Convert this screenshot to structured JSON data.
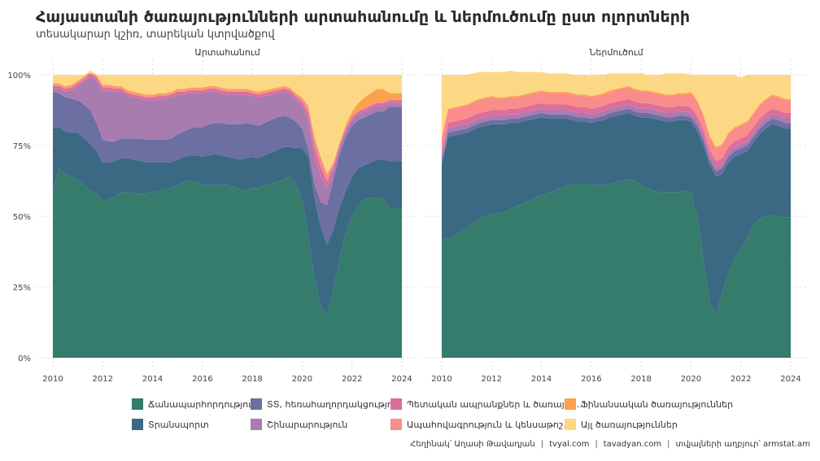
{
  "title": "Հայաստանի ծառայությունների արտահանումը և ներմուծումը ըստ ոլորտների",
  "subtitle": "տեսակարար կշիռ, տարեկան կտրվածքով",
  "caption": {
    "author": "Հեղինակ՝ Աղասի Թավադյան",
    "site1": "tvyal.com",
    "site2": "tavadyan.com",
    "source": "տվյալների աղբյուր՝ armstat.am"
  },
  "chart_data": {
    "type": "area",
    "stacked": true,
    "grid": true,
    "legend_position": "bottom",
    "x_ticks": [
      "2010",
      "2012",
      "2014",
      "2016",
      "2018",
      "2020",
      "2022",
      "2024"
    ],
    "y_ticks": [
      "0%",
      "25%",
      "50%",
      "75%",
      "100%"
    ],
    "ylim": [
      0,
      100
    ],
    "xlim": [
      2010,
      2024
    ],
    "x": [
      2010.0,
      2010.25,
      2010.5,
      2010.75,
      2011.0,
      2011.25,
      2011.5,
      2011.75,
      2012.0,
      2012.25,
      2012.5,
      2012.75,
      2013.0,
      2013.25,
      2013.5,
      2013.75,
      2014.0,
      2014.25,
      2014.5,
      2014.75,
      2015.0,
      2015.25,
      2015.5,
      2015.75,
      2016.0,
      2016.25,
      2016.5,
      2016.75,
      2017.0,
      2017.25,
      2017.5,
      2017.75,
      2018.0,
      2018.25,
      2018.5,
      2018.75,
      2019.0,
      2019.25,
      2019.5,
      2019.75,
      2020.0,
      2020.25,
      2020.5,
      2020.75,
      2021.0,
      2021.25,
      2021.5,
      2021.75,
      2022.0,
      2022.25,
      2022.5,
      2022.75,
      2023.0,
      2023.25,
      2023.5,
      2023.75,
      2024.0
    ],
    "categories": [
      {
        "key": "transport",
        "name": "Տրանսպորտ",
        "color": "#3b6882"
      },
      {
        "key": "construction",
        "name": "Շինարարություն",
        "color": "#a97cb0"
      },
      {
        "key": "insurance",
        "name": "Ապահովագրություն և կենսաթոշ...",
        "color": "#fa8c8c"
      },
      {
        "key": "other",
        "name": "Այլ ծառայություններ",
        "color": "#fdd884"
      },
      {
        "key": "travel",
        "name": "Ճանապարհորդություն",
        "color": "#357c6c"
      },
      {
        "key": "ict",
        "name": "ՏՏ, հեռահաղորդակցություն",
        "color": "#6b6fa2"
      },
      {
        "key": "government",
        "name": "Պետական ապրանքներ և ծառայու...",
        "color": "#dc6e9c"
      },
      {
        "key": "financial",
        "name": "Ֆինանսական ծառայություններ",
        "color": "#fba24a"
      }
    ],
    "stack_order": [
      "travel",
      "transport",
      "ict",
      "construction",
      "government",
      "insurance",
      "financial",
      "other"
    ],
    "panels": [
      {
        "title": "Արտահանում",
        "series": {
          "travel": [
            59.0,
            67.0,
            65.0,
            64.0,
            63.0,
            61.0,
            59.0,
            58.0,
            55.5,
            56.0,
            57.0,
            58.5,
            58.5,
            58.0,
            58.0,
            58.0,
            58.5,
            59.0,
            59.5,
            60.0,
            61.0,
            62.0,
            62.5,
            62.0,
            61.0,
            61.0,
            61.0,
            61.0,
            61.0,
            60.5,
            59.5,
            59.0,
            60.0,
            60.0,
            61.0,
            61.5,
            62.0,
            63.0,
            64.0,
            61.0,
            56.0,
            43.0,
            28.0,
            18.0,
            15.0,
            24.0,
            35.0,
            44.0,
            50.0,
            54.0,
            56.0,
            56.5,
            56.5,
            56.0,
            53.0,
            53.0,
            53.0
          ],
          "transport": [
            22.0,
            14.5,
            15.0,
            15.5,
            16.5,
            16.5,
            16.5,
            15.0,
            13.5,
            13.0,
            12.5,
            12.0,
            12.0,
            12.0,
            11.5,
            11.0,
            10.5,
            10.0,
            9.5,
            9.0,
            9.0,
            9.0,
            9.0,
            9.5,
            10.0,
            10.5,
            11.0,
            10.5,
            10.0,
            10.0,
            10.5,
            11.5,
            11.0,
            10.5,
            10.5,
            11.0,
            11.5,
            11.5,
            10.5,
            13.0,
            18.0,
            28.0,
            28.0,
            28.0,
            25.0,
            21.0,
            18.0,
            15.0,
            14.0,
            13.0,
            12.0,
            12.5,
            13.5,
            14.0,
            16.5,
            16.5,
            16.5
          ],
          "ict": [
            13.0,
            12.0,
            12.0,
            12.0,
            11.5,
            12.0,
            12.0,
            10.0,
            8.0,
            7.5,
            7.0,
            7.0,
            7.0,
            7.5,
            8.0,
            8.0,
            8.0,
            8.0,
            8.0,
            8.5,
            9.0,
            9.0,
            9.5,
            10.0,
            10.5,
            11.0,
            11.0,
            11.5,
            11.5,
            12.0,
            12.5,
            12.5,
            11.5,
            11.5,
            11.5,
            11.5,
            11.5,
            11.0,
            10.5,
            9.5,
            7.0,
            3.0,
            5.0,
            9.0,
            14.0,
            18.0,
            19.0,
            19.0,
            18.0,
            17.0,
            17.0,
            17.0,
            17.0,
            17.0,
            19.0,
            19.0,
            19.0
          ],
          "construction": [
            1.0,
            1.5,
            2.0,
            3.0,
            5.0,
            8.0,
            12.0,
            15.0,
            17.5,
            18.0,
            17.5,
            16.5,
            15.0,
            14.5,
            14.0,
            14.0,
            14.0,
            14.5,
            14.5,
            14.5,
            14.0,
            13.0,
            12.5,
            12.0,
            12.0,
            11.5,
            11.0,
            10.5,
            10.5,
            10.5,
            10.5,
            10.0,
            10.0,
            10.0,
            9.5,
            9.0,
            8.5,
            8.5,
            8.5,
            8.0,
            8.0,
            10.0,
            10.0,
            9.0,
            6.0,
            3.0,
            2.0,
            2.0,
            2.0,
            2.0,
            2.0,
            2.0,
            2.0,
            2.0,
            1.5,
            1.5,
            1.5
          ],
          "government": [
            1.0,
            1.0,
            1.0,
            1.0,
            1.0,
            1.0,
            1.0,
            1.0,
            1.0,
            1.0,
            1.0,
            1.0,
            1.0,
            1.0,
            1.0,
            1.0,
            1.0,
            1.0,
            1.0,
            1.0,
            1.0,
            1.0,
            1.0,
            1.0,
            1.0,
            1.0,
            1.0,
            1.0,
            1.0,
            1.0,
            1.0,
            1.0,
            1.0,
            1.0,
            1.0,
            1.0,
            1.0,
            1.0,
            1.0,
            1.0,
            1.5,
            2.5,
            3.5,
            3.5,
            2.5,
            1.5,
            1.0,
            1.0,
            1.0,
            1.0,
            1.0,
            1.0,
            1.0,
            1.0,
            1.0,
            1.0,
            1.0
          ],
          "insurance": [
            0.5,
            0.5,
            0.5,
            0.5,
            0.5,
            0.5,
            0.5,
            0.5,
            0.5,
            0.5,
            0.5,
            0.5,
            0.5,
            0.5,
            0.5,
            0.5,
            0.5,
            0.5,
            0.5,
            0.5,
            0.5,
            0.5,
            0.5,
            0.5,
            0.5,
            0.5,
            0.5,
            0.5,
            0.5,
            0.5,
            0.5,
            0.5,
            0.5,
            0.5,
            0.5,
            0.5,
            0.5,
            0.5,
            0.5,
            0.5,
            1.0,
            2.0,
            3.0,
            3.0,
            2.0,
            1.0,
            0.5,
            0.5,
            0.5,
            0.5,
            0.5,
            0.5,
            0.5,
            0.5,
            0.5,
            0.5,
            0.5
          ],
          "financial": [
            0.5,
            0.5,
            0.5,
            0.5,
            0.5,
            0.5,
            0.5,
            0.5,
            0.5,
            0.5,
            0.5,
            0.5,
            0.5,
            0.5,
            0.5,
            0.5,
            0.5,
            0.5,
            0.5,
            0.5,
            0.5,
            0.5,
            0.5,
            0.5,
            0.5,
            0.5,
            0.5,
            0.5,
            0.5,
            0.5,
            0.5,
            0.5,
            0.5,
            0.5,
            0.5,
            0.5,
            0.5,
            0.5,
            0.5,
            0.5,
            0.5,
            0.5,
            0.5,
            0.5,
            0.5,
            0.5,
            0.5,
            1.0,
            1.5,
            2.5,
            3.5,
            4.0,
            4.5,
            4.5,
            2.0,
            2.0,
            2.0
          ],
          "other": [
            3.0,
            3.0,
            4.0,
            3.5,
            2.0,
            0.5,
            -1.0,
            0.0,
            3.5,
            3.5,
            4.0,
            4.0,
            5.5,
            6.0,
            6.5,
            7.0,
            7.0,
            6.5,
            6.5,
            6.0,
            5.0,
            5.0,
            4.5,
            4.5,
            4.5,
            4.0,
            4.0,
            4.5,
            5.0,
            5.0,
            5.0,
            5.0,
            5.5,
            6.0,
            5.5,
            5.0,
            4.5,
            4.0,
            4.5,
            6.5,
            8.0,
            11.0,
            22.0,
            29.0,
            35.0,
            31.0,
            24.0,
            17.5,
            13.0,
            10.0,
            8.0,
            6.5,
            5.0,
            5.0,
            6.5,
            6.5,
            6.5
          ]
        }
      },
      {
        "title": "Ներմուծում",
        "series": {
          "travel": [
            42.0,
            42.0,
            43.0,
            44.5,
            46.0,
            47.5,
            49.0,
            50.0,
            50.5,
            51.0,
            51.5,
            52.5,
            53.5,
            54.5,
            55.5,
            56.5,
            57.5,
            58.0,
            59.0,
            60.0,
            61.0,
            61.5,
            61.5,
            61.5,
            61.0,
            61.0,
            61.0,
            61.5,
            62.0,
            62.5,
            63.0,
            62.5,
            61.0,
            60.0,
            59.0,
            58.5,
            58.5,
            58.5,
            58.5,
            59.0,
            58.5,
            50.0,
            35.0,
            20.0,
            15.0,
            23.0,
            30.0,
            35.0,
            38.0,
            42.0,
            47.0,
            49.0,
            50.0,
            50.5,
            50.0,
            49.5,
            49.5
          ],
          "transport": [
            26.0,
            36.0,
            35.5,
            34.5,
            33.5,
            33.0,
            32.5,
            32.0,
            32.0,
            31.5,
            31.0,
            30.5,
            29.5,
            29.0,
            28.5,
            28.0,
            27.5,
            26.5,
            25.5,
            24.5,
            23.5,
            22.5,
            22.0,
            22.0,
            22.0,
            22.5,
            23.0,
            23.5,
            23.5,
            23.5,
            23.5,
            23.0,
            24.0,
            25.0,
            25.5,
            25.5,
            25.0,
            25.0,
            25.5,
            25.0,
            25.0,
            30.0,
            40.0,
            48.0,
            49.0,
            42.0,
            39.0,
            36.0,
            34.0,
            31.0,
            29.0,
            30.0,
            31.0,
            32.0,
            32.0,
            31.5,
            31.5
          ],
          "ict": [
            1.5,
            1.5,
            1.5,
            1.5,
            1.5,
            1.5,
            1.5,
            1.5,
            1.5,
            1.5,
            1.5,
            1.5,
            1.5,
            1.5,
            1.5,
            1.5,
            1.5,
            1.5,
            1.5,
            1.5,
            1.5,
            1.5,
            1.5,
            1.5,
            1.5,
            1.5,
            1.5,
            1.5,
            1.5,
            1.5,
            1.5,
            1.5,
            1.5,
            1.5,
            1.5,
            1.5,
            1.5,
            1.5,
            1.5,
            1.5,
            1.5,
            2.0,
            2.0,
            2.0,
            2.0,
            2.0,
            2.0,
            2.0,
            2.0,
            2.0,
            2.0,
            2.0,
            2.0,
            2.0,
            2.0,
            2.0,
            2.0
          ],
          "construction": [
            1.5,
            1.5,
            1.5,
            1.5,
            1.5,
            1.5,
            1.5,
            1.5,
            1.5,
            1.5,
            1.5,
            1.5,
            1.5,
            1.5,
            1.5,
            1.5,
            1.5,
            1.5,
            1.5,
            1.5,
            1.5,
            1.5,
            1.5,
            1.5,
            1.5,
            1.5,
            1.5,
            1.5,
            1.5,
            1.5,
            1.5,
            1.5,
            1.5,
            1.5,
            1.5,
            1.5,
            1.5,
            1.5,
            1.5,
            1.5,
            1.5,
            1.5,
            1.5,
            1.5,
            1.5,
            1.5,
            1.5,
            1.5,
            1.5,
            1.5,
            1.5,
            1.5,
            1.5,
            1.5,
            1.5,
            1.5,
            1.5
          ],
          "government": [
            2.0,
            2.0,
            2.0,
            2.0,
            2.0,
            2.0,
            2.0,
            2.0,
            2.0,
            2.0,
            2.0,
            2.0,
            2.0,
            2.0,
            2.0,
            2.0,
            2.0,
            2.0,
            2.0,
            2.0,
            2.0,
            2.0,
            2.0,
            2.0,
            2.0,
            2.0,
            2.0,
            2.0,
            2.0,
            2.0,
            2.0,
            2.0,
            2.0,
            2.0,
            2.0,
            2.0,
            2.0,
            2.0,
            2.0,
            2.0,
            2.0,
            2.0,
            2.0,
            2.0,
            2.0,
            2.0,
            2.0,
            2.0,
            2.0,
            2.0,
            2.0,
            2.0,
            2.0,
            2.0,
            2.0,
            2.0,
            2.0
          ],
          "insurance": [
            4.5,
            4.5,
            4.5,
            4.5,
            4.5,
            4.5,
            4.5,
            4.5,
            4.5,
            4.0,
            4.0,
            4.0,
            4.0,
            4.0,
            4.0,
            4.0,
            4.0,
            4.0,
            4.0,
            4.0,
            4.0,
            4.0,
            4.0,
            4.0,
            4.0,
            4.0,
            4.0,
            4.0,
            4.0,
            4.0,
            4.0,
            4.0,
            4.0,
            4.0,
            4.0,
            4.0,
            4.0,
            4.0,
            4.0,
            4.0,
            5.0,
            5.0,
            5.0,
            4.5,
            4.5,
            4.5,
            4.5,
            4.5,
            4.5,
            4.5,
            4.5,
            4.5,
            4.5,
            4.5,
            4.5,
            4.5,
            4.5
          ],
          "financial": [
            0.5,
            0.5,
            0.5,
            0.5,
            0.5,
            0.5,
            0.5,
            0.5,
            0.5,
            0.5,
            0.5,
            0.5,
            0.5,
            0.5,
            0.5,
            0.5,
            0.5,
            0.5,
            0.5,
            0.5,
            0.5,
            0.5,
            0.5,
            0.5,
            0.5,
            0.5,
            0.5,
            0.5,
            0.5,
            0.5,
            0.5,
            0.5,
            0.5,
            0.5,
            0.5,
            0.5,
            0.5,
            0.5,
            0.5,
            0.5,
            0.5,
            0.5,
            0.5,
            0.5,
            0.5,
            0.5,
            0.5,
            0.5,
            0.5,
            0.5,
            0.5,
            0.5,
            0.5,
            0.5,
            0.5,
            0.5,
            0.5
          ],
          "other": [
            22.0,
            12.0,
            11.5,
            11.0,
            10.5,
            10.0,
            9.5,
            9.0,
            8.5,
            9.0,
            9.0,
            9.0,
            8.5,
            8.0,
            7.5,
            7.0,
            6.5,
            6.5,
            6.5,
            6.5,
            6.5,
            6.5,
            7.0,
            7.0,
            7.5,
            7.0,
            6.5,
            6.0,
            5.5,
            5.0,
            4.5,
            5.5,
            6.0,
            5.5,
            6.0,
            6.5,
            7.5,
            7.5,
            7.0,
            7.0,
            6.0,
            9.0,
            14.0,
            21.5,
            25.5,
            24.5,
            20.5,
            18.5,
            16.5,
            16.5,
            13.5,
            10.5,
            8.5,
            7.0,
            7.5,
            8.5,
            8.5
          ]
        }
      }
    ]
  }
}
